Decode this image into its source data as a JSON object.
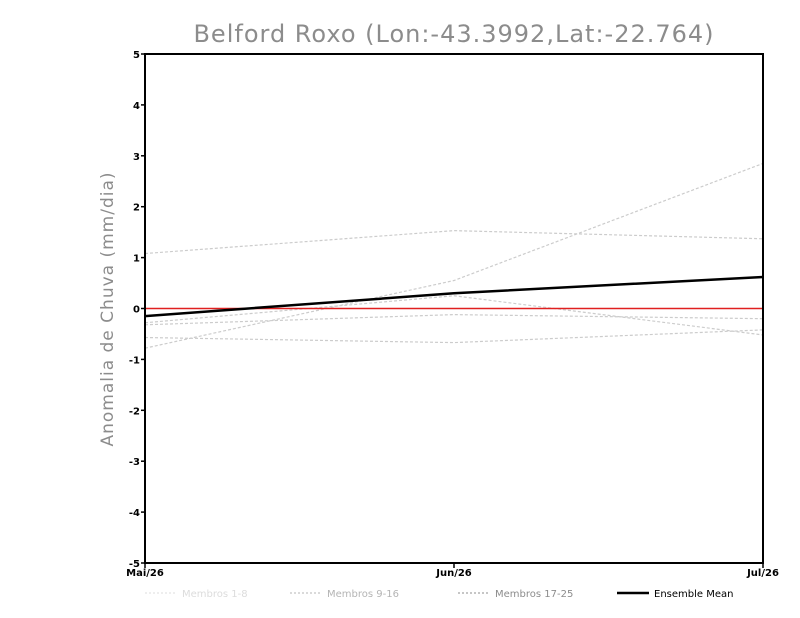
{
  "chart_data": {
    "type": "line",
    "title": "Belford Roxo (Lon:-43.3992,Lat:-22.764)",
    "xlabel": "",
    "ylabel": "Anomalia de Chuva (mm/dia)",
    "categories": [
      "Mai/26",
      "Jun/26",
      "Jul/26"
    ],
    "ylim": [
      -5,
      5
    ],
    "yticks": [
      5,
      4,
      3,
      2,
      1,
      0,
      -1,
      -2,
      -3,
      -4,
      -5
    ],
    "ytick_labels": [
      "5",
      "4",
      "3",
      "2",
      "1",
      "0",
      "-1",
      "-2",
      "-3",
      "-4",
      "-5"
    ],
    "zero_line": {
      "value": 0,
      "color": "#e02020"
    },
    "members": [
      {
        "values": [
          1.08,
          1.53,
          1.37
        ]
      },
      {
        "values": [
          -0.78,
          0.55,
          2.85
        ]
      },
      {
        "values": [
          -0.28,
          0.25,
          -0.52
        ]
      },
      {
        "values": [
          -0.57,
          -0.67,
          -0.42
        ]
      },
      {
        "values": [
          -0.32,
          -0.12,
          -0.2
        ]
      }
    ],
    "ensemble_mean": {
      "name": "Ensemble Mean",
      "values": [
        -0.15,
        0.3,
        0.62
      ],
      "color": "#000000"
    },
    "legend": [
      {
        "label": "Membros 1-8",
        "color": "#dcdcdc",
        "dashed": true
      },
      {
        "label": "Membros 9-16",
        "color": "#b4b4b4",
        "dashed": true
      },
      {
        "label": "Membros 17-25",
        "color": "#8c8c8c",
        "dashed": true
      },
      {
        "label": "Ensemble Mean",
        "color": "#000000",
        "dashed": false
      }
    ],
    "member_color": "#cccccc"
  }
}
